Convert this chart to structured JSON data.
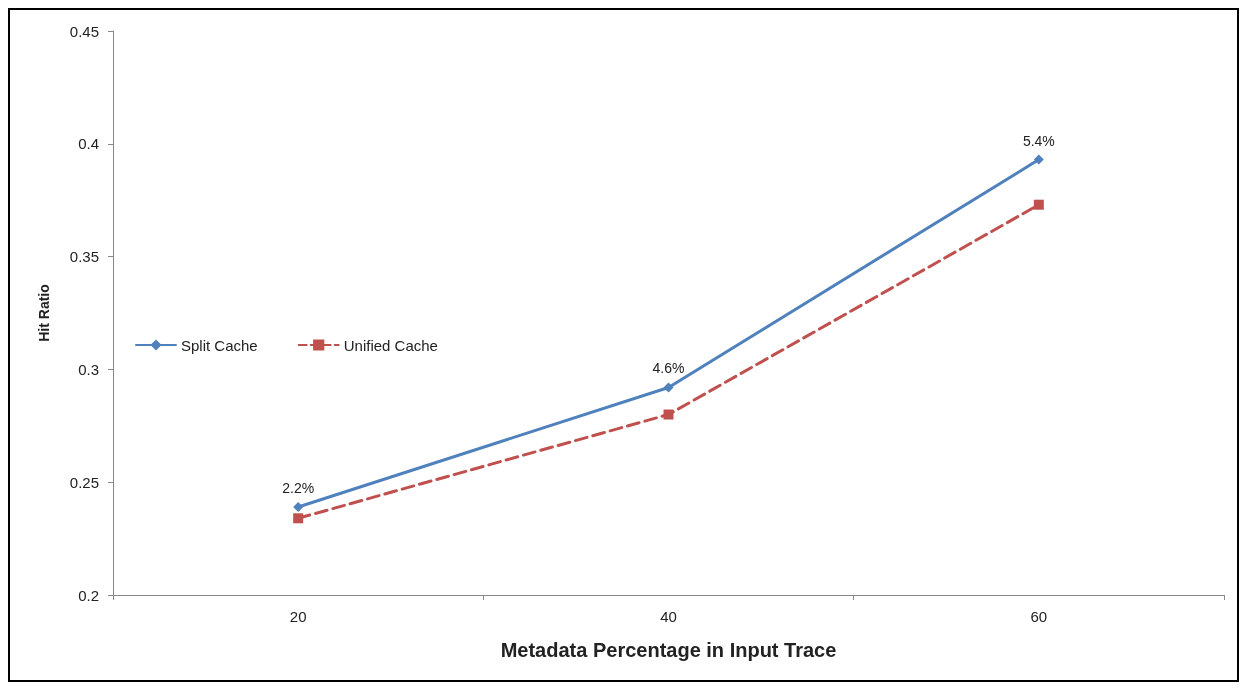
{
  "chart_data": {
    "type": "line",
    "xlabel": "Metadata Percentage in Input Trace",
    "ylabel": "Hit Ratio",
    "categories": [
      "20",
      "40",
      "60"
    ],
    "series": [
      {
        "name": "Split Cache",
        "color": "#4f81bd",
        "values": [
          0.239,
          0.292,
          0.393
        ],
        "marker": "diamond",
        "line_style": "solid"
      },
      {
        "name": "Unified Cache",
        "color": "#c0504d",
        "values": [
          0.234,
          0.28,
          0.373
        ],
        "marker": "square",
        "line_style": "dashed"
      }
    ],
    "ylim": [
      0.2,
      0.45
    ],
    "yticks": [
      0.2,
      0.25,
      0.3,
      0.35,
      0.4,
      0.45
    ],
    "grid": false,
    "legend": "left",
    "annotations": [
      {
        "text": "2.2%",
        "x": "20",
        "y": 0.239
      },
      {
        "text": "4.6%",
        "x": "40",
        "y": 0.292
      },
      {
        "text": "5.4%",
        "x": "60",
        "y": 0.393
      }
    ]
  }
}
